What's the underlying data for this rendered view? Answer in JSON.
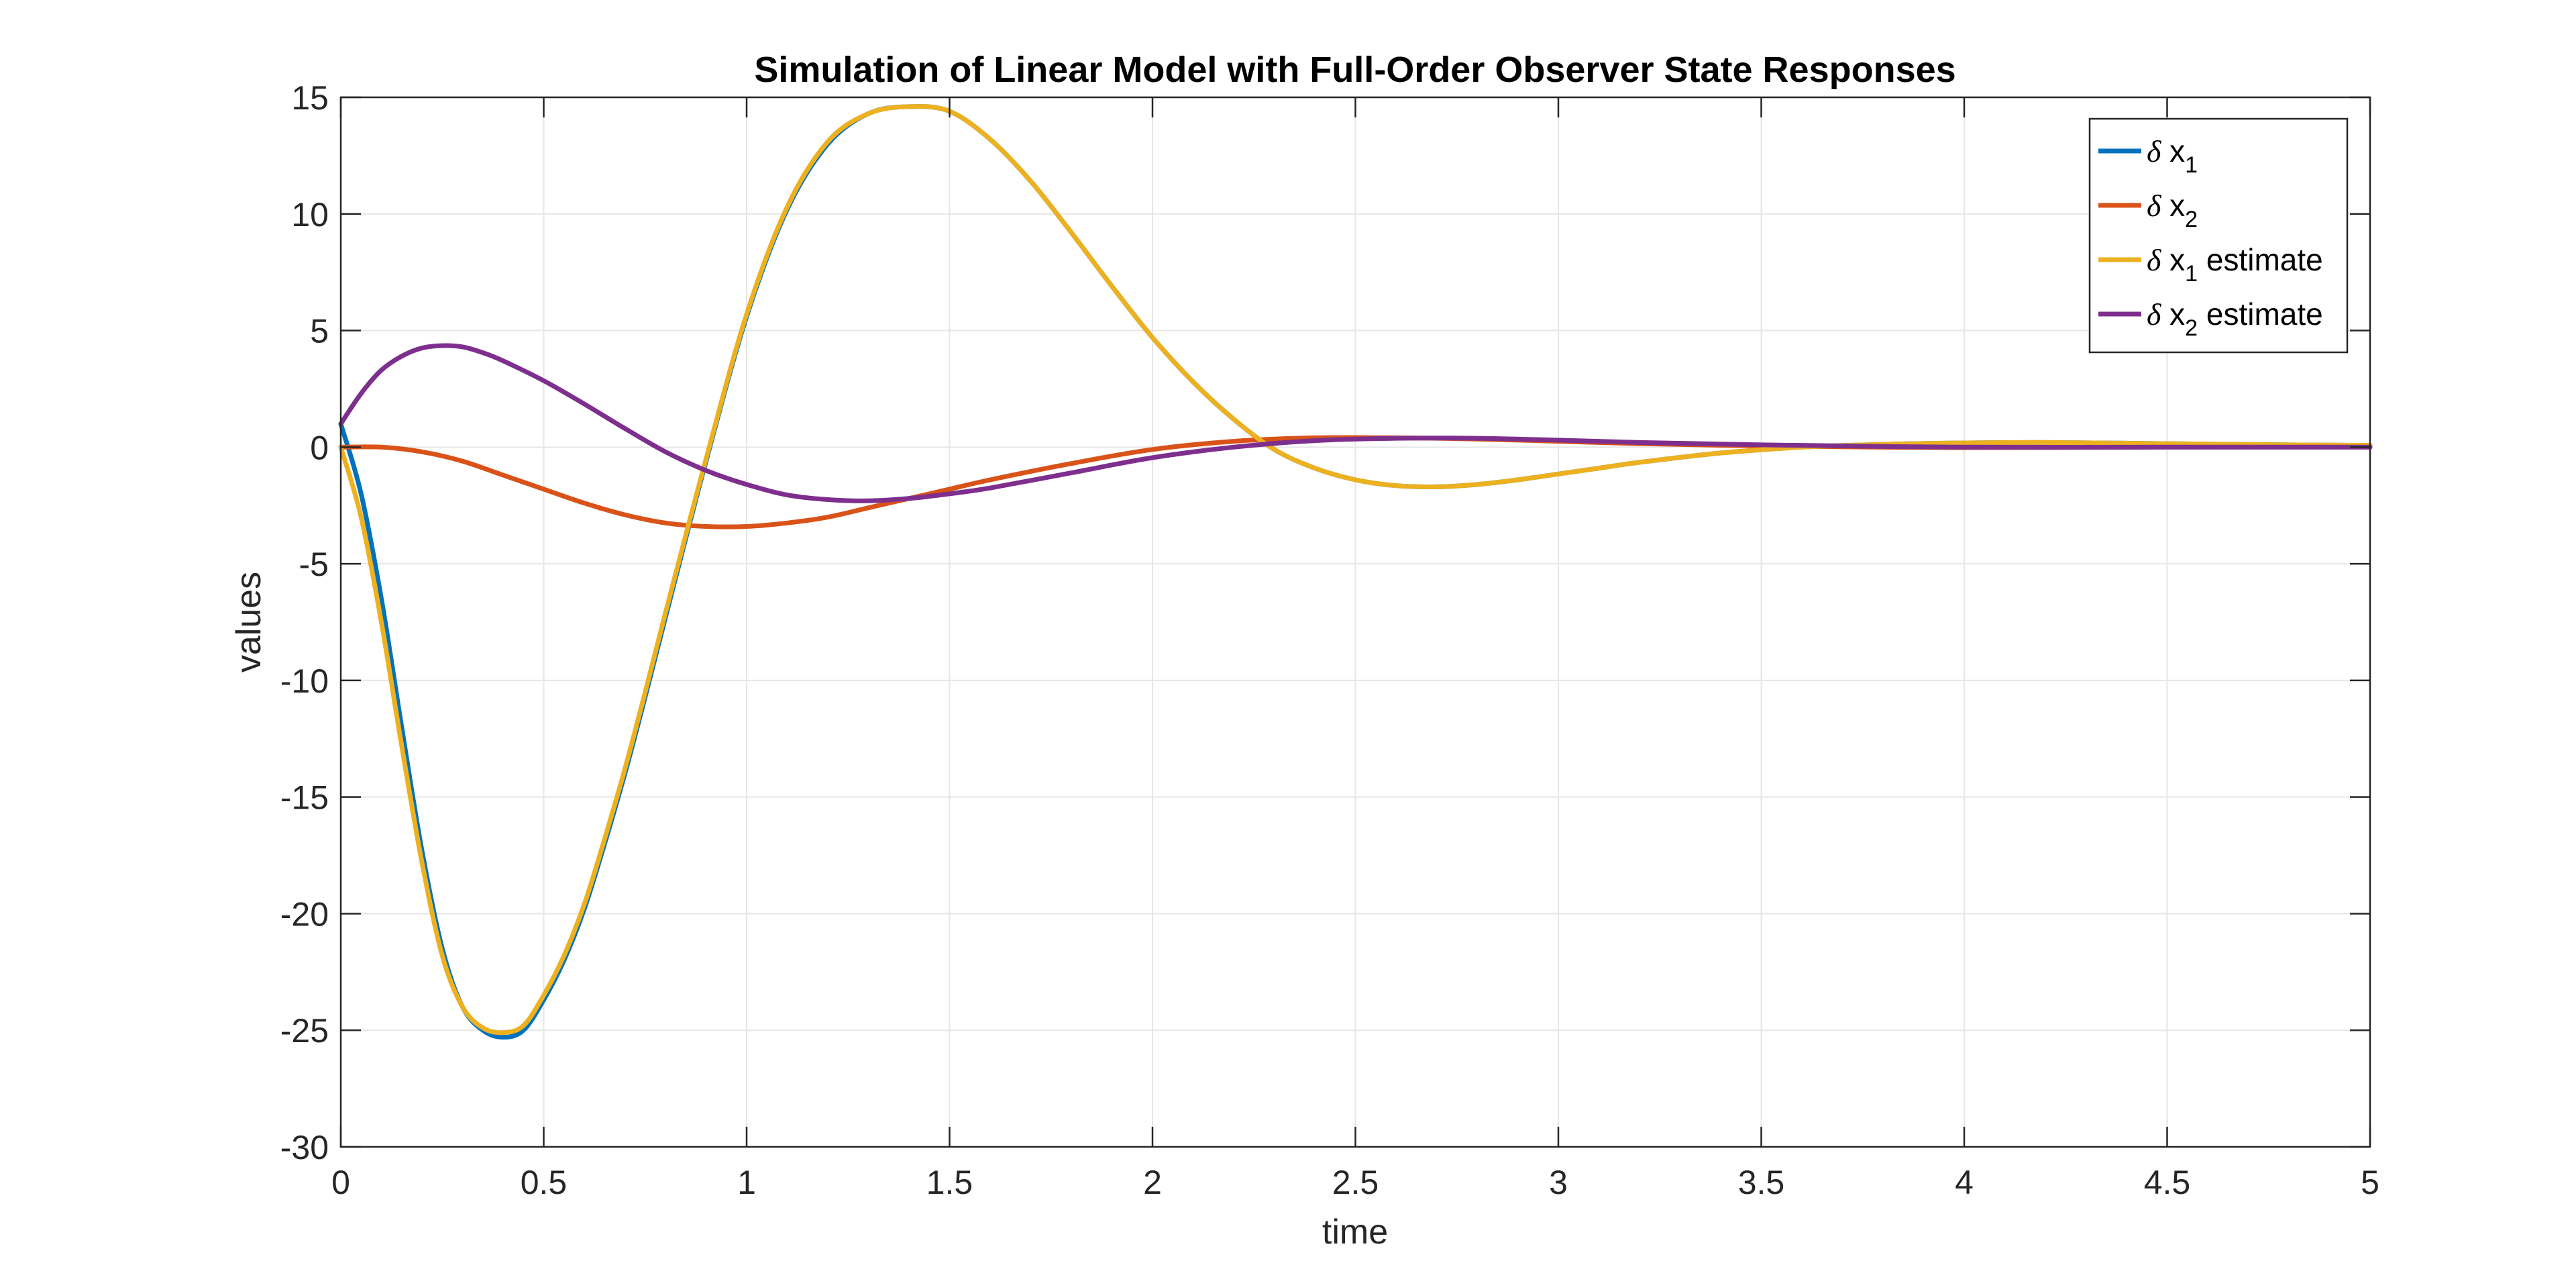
{
  "chart_data": {
    "type": "line",
    "title": "Simulation of Linear Model with Full-Order Observer State Responses",
    "xlabel": "time",
    "ylabel": "values",
    "xlim": [
      0,
      5
    ],
    "ylim": [
      -30,
      15
    ],
    "xticks": [
      0,
      0.5,
      1,
      1.5,
      2,
      2.5,
      3,
      3.5,
      4,
      4.5,
      5
    ],
    "yticks": [
      -30,
      -25,
      -20,
      -15,
      -10,
      -5,
      0,
      5,
      10,
      15
    ],
    "xtick_labels": [
      "0",
      "0.5",
      "1",
      "1.5",
      "2",
      "2.5",
      "3",
      "3.5",
      "4",
      "4.5",
      "5"
    ],
    "ytick_labels": [
      "-30",
      "-25",
      "-20",
      "-15",
      "-10",
      "-5",
      "0",
      "5",
      "10",
      "15"
    ],
    "grid": true,
    "legend_position": "top-right",
    "series": [
      {
        "name": "δ x1",
        "label_parts": {
          "greek": "δ",
          "var": "x",
          "sub": "1",
          "suffix": ""
        },
        "color": "#0072BD",
        "x": [
          0,
          0.05,
          0.1,
          0.15,
          0.2,
          0.25,
          0.3,
          0.35,
          0.4,
          0.45,
          0.5,
          0.55,
          0.6,
          0.65,
          0.7,
          0.75,
          0.8,
          0.9,
          1.0,
          1.1,
          1.2,
          1.3,
          1.4,
          1.5,
          1.6,
          1.7,
          1.8,
          1.9,
          2.0,
          2.1,
          2.2,
          2.3,
          2.4,
          2.5,
          2.6,
          2.7,
          2.8,
          2.9,
          3.0,
          3.1,
          3.2,
          3.4,
          3.6,
          3.8,
          4.0,
          4.2,
          4.5,
          4.8,
          5.0
        ],
        "y": [
          1.0,
          -2.0,
          -6.5,
          -12.0,
          -17.3,
          -21.5,
          -24.0,
          -25.0,
          -25.3,
          -25.0,
          -23.7,
          -22.0,
          -19.8,
          -17.0,
          -14.0,
          -10.7,
          -7.3,
          -0.6,
          5.6,
          10.2,
          13.0,
          14.3,
          14.6,
          14.4,
          13.2,
          11.4,
          9.2,
          6.9,
          4.7,
          2.8,
          1.2,
          -0.1,
          -0.9,
          -1.4,
          -1.65,
          -1.7,
          -1.6,
          -1.4,
          -1.15,
          -0.9,
          -0.65,
          -0.25,
          0.0,
          0.12,
          0.18,
          0.2,
          0.15,
          0.1,
          0.08
        ]
      },
      {
        "name": "δ x2",
        "label_parts": {
          "greek": "δ",
          "var": "x",
          "sub": "2",
          "suffix": ""
        },
        "color": "#D95319",
        "x": [
          0,
          0.1,
          0.2,
          0.3,
          0.4,
          0.5,
          0.6,
          0.7,
          0.8,
          0.9,
          1.0,
          1.1,
          1.2,
          1.3,
          1.4,
          1.5,
          1.6,
          1.8,
          2.0,
          2.2,
          2.4,
          2.6,
          2.8,
          3.0,
          3.2,
          3.5,
          4.0,
          4.5,
          5.0
        ],
        "y": [
          0.0,
          0.0,
          -0.2,
          -0.6,
          -1.2,
          -1.8,
          -2.4,
          -2.9,
          -3.25,
          -3.4,
          -3.4,
          -3.25,
          -3.0,
          -2.6,
          -2.2,
          -1.8,
          -1.4,
          -0.7,
          -0.1,
          0.25,
          0.4,
          0.4,
          0.35,
          0.25,
          0.15,
          0.05,
          -0.02,
          0.0,
          0.0
        ]
      },
      {
        "name": "δ x1 estimate",
        "label_parts": {
          "greek": "δ",
          "var": "x",
          "sub": "1",
          "suffix": " estimate"
        },
        "color": "#EDB120",
        "x": [
          0,
          0.05,
          0.1,
          0.15,
          0.2,
          0.25,
          0.3,
          0.35,
          0.4,
          0.45,
          0.5,
          0.55,
          0.6,
          0.65,
          0.7,
          0.75,
          0.8,
          0.9,
          1.0,
          1.1,
          1.2,
          1.3,
          1.4,
          1.5,
          1.6,
          1.7,
          1.8,
          1.9,
          2.0,
          2.1,
          2.2,
          2.3,
          2.4,
          2.5,
          2.6,
          2.7,
          2.8,
          2.9,
          3.0,
          3.1,
          3.2,
          3.4,
          3.6,
          3.8,
          4.0,
          4.2,
          4.5,
          4.8,
          5.0
        ],
        "y": [
          0.0,
          -3.0,
          -7.5,
          -12.8,
          -17.8,
          -21.8,
          -24.0,
          -24.9,
          -25.1,
          -24.8,
          -23.5,
          -21.8,
          -19.6,
          -16.8,
          -13.8,
          -10.5,
          -7.1,
          -0.5,
          5.7,
          10.3,
          13.1,
          14.3,
          14.6,
          14.4,
          13.2,
          11.4,
          9.2,
          6.9,
          4.7,
          2.8,
          1.2,
          -0.1,
          -0.9,
          -1.4,
          -1.65,
          -1.7,
          -1.6,
          -1.4,
          -1.15,
          -0.9,
          -0.65,
          -0.25,
          0.0,
          0.12,
          0.18,
          0.2,
          0.15,
          0.1,
          0.08
        ]
      },
      {
        "name": "δ x2 estimate",
        "label_parts": {
          "greek": "δ",
          "var": "x",
          "sub": "2",
          "suffix": " estimate"
        },
        "color": "#7E2F8E",
        "x": [
          0,
          0.05,
          0.1,
          0.15,
          0.2,
          0.25,
          0.3,
          0.35,
          0.4,
          0.5,
          0.6,
          0.7,
          0.8,
          0.9,
          1.0,
          1.1,
          1.2,
          1.3,
          1.4,
          1.5,
          1.6,
          1.8,
          2.0,
          2.2,
          2.4,
          2.6,
          2.8,
          3.0,
          3.2,
          3.5,
          4.0,
          4.5,
          5.0
        ],
        "y": [
          1.0,
          2.3,
          3.3,
          3.9,
          4.25,
          4.35,
          4.3,
          4.05,
          3.7,
          2.85,
          1.85,
          0.8,
          -0.2,
          -1.0,
          -1.6,
          -2.05,
          -2.25,
          -2.3,
          -2.2,
          -2.0,
          -1.75,
          -1.1,
          -0.45,
          0.0,
          0.28,
          0.38,
          0.38,
          0.3,
          0.2,
          0.1,
          0.0,
          0.0,
          0.0
        ]
      }
    ]
  }
}
